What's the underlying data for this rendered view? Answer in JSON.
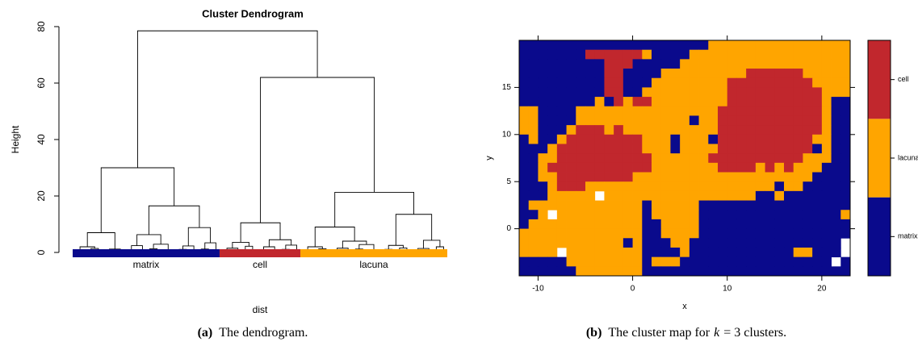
{
  "chart_data": [
    {
      "type": "dendrogram",
      "title": "Cluster Dendrogram",
      "y_label": "Height",
      "x_label": "dist",
      "ylim": [
        0,
        80
      ],
      "yticks": [
        0,
        20,
        40,
        60,
        80
      ],
      "tree": [
        78.5,
        [
          30,
          [
            7,
            [
              2,
              [
                1,
                null,
                null
              ],
              [
                1.4,
                null,
                null
              ]
            ],
            [
              1.2,
              [
                0.6,
                null,
                null
              ],
              null
            ]
          ],
          [
            16.5,
            [
              6.3,
              [
                2.4,
                [
                  1,
                  null,
                  null
                ],
                null
              ],
              [
                2.9,
                [
                  1.3,
                  null,
                  null
                ],
                [
                  0.9,
                  null,
                  null
                ]
              ]
            ],
            [
              8.8,
              [
                2.3,
                [
                  1.1,
                  null,
                  null
                ],
                null
              ],
              [
                3.4,
                [
                  1.2,
                  null,
                  null
                ],
                null
              ]
            ]
          ]
        ],
        [
          62,
          [
            10.5,
            [
              3.6,
              [
                1.5,
                [
                  0.8,
                  null,
                  null
                ],
                null
              ],
              [
                2.2,
                null,
                null
              ]
            ],
            [
              4.5,
              [
                2,
                [
                  1,
                  null,
                  null
                ],
                null
              ],
              [
                2.6,
                [
                  1.1,
                  null,
                  null
                ],
                null
              ]
            ]
          ],
          [
            21.3,
            [
              9,
              [
                2,
                [
                  1,
                  null,
                  null
                ],
                [
                  1.3,
                  null,
                  null
                ]
              ],
              [
                4,
                [
                  1.5,
                  [
                    0.9,
                    null,
                    null
                  ],
                  null
                ],
                [
                  2.8,
                  [
                    1.2,
                    null,
                    null
                  ],
                  [
                    0.7,
                    null,
                    null
                  ]
                ]
              ]
            ],
            [
              13.5,
              [
                2.5,
                [
                  1.1,
                  null,
                  null
                ],
                [
                  1.6,
                  null,
                  null
                ]
              ],
              [
                4.3,
                [
                  1.4,
                  [
                    0.8,
                    null,
                    null
                  ],
                  null
                ],
                [
                  2,
                  null,
                  null
                ]
              ]
            ]
          ]
        ]
      ],
      "clusters": [
        {
          "name": "matrix",
          "color": "#0a0a8c",
          "leaves": 20
        },
        {
          "name": "cell",
          "color": "#c1272d",
          "leaves": 11
        },
        {
          "name": "lacuna",
          "color": "#ffa500",
          "leaves": 20
        }
      ],
      "caption": {
        "label": "(a)",
        "text": "The dendrogram."
      }
    },
    {
      "type": "heatmap",
      "x_label": "x",
      "y_label": "y",
      "xlim": [
        -12,
        23
      ],
      "ylim": [
        -5,
        20
      ],
      "xticks": [
        -10,
        0,
        10,
        20
      ],
      "yticks": [
        0,
        5,
        10,
        15
      ],
      "levels": [
        {
          "name": "matrix",
          "color": "#0a0a8c"
        },
        {
          "name": "lacuna",
          "color": "#ffa500"
        },
        {
          "name": "cell",
          "color": "#c1272d"
        }
      ],
      "z": [
        [
          0,
          0,
          0,
          0,
          0,
          0,
          0,
          0,
          0,
          0,
          0,
          0,
          0,
          0,
          0,
          0,
          0,
          0,
          0,
          0,
          1,
          1,
          1,
          1,
          1,
          1,
          1,
          1,
          1,
          1,
          1,
          1,
          1,
          1,
          1
        ],
        [
          0,
          0,
          0,
          0,
          0,
          0,
          0,
          2,
          2,
          2,
          2,
          2,
          2,
          1,
          0,
          0,
          0,
          0,
          1,
          1,
          1,
          1,
          1,
          1,
          1,
          1,
          1,
          1,
          1,
          1,
          1,
          1,
          1,
          1,
          1
        ],
        [
          0,
          0,
          0,
          0,
          0,
          0,
          0,
          0,
          0,
          2,
          2,
          2,
          0,
          0,
          0,
          0,
          0,
          1,
          1,
          1,
          1,
          1,
          1,
          1,
          1,
          1,
          1,
          1,
          1,
          1,
          1,
          1,
          1,
          1,
          1
        ],
        [
          0,
          0,
          0,
          0,
          0,
          0,
          0,
          0,
          0,
          2,
          2,
          0,
          0,
          0,
          0,
          1,
          1,
          1,
          1,
          1,
          1,
          1,
          1,
          1,
          2,
          2,
          2,
          2,
          2,
          2,
          1,
          1,
          1,
          1,
          1
        ],
        [
          0,
          0,
          0,
          0,
          0,
          0,
          0,
          0,
          0,
          2,
          2,
          0,
          0,
          0,
          1,
          1,
          1,
          1,
          1,
          1,
          1,
          1,
          2,
          2,
          2,
          2,
          2,
          2,
          2,
          2,
          2,
          1,
          1,
          1,
          1
        ],
        [
          0,
          0,
          0,
          0,
          0,
          0,
          0,
          0,
          0,
          2,
          2,
          0,
          0,
          1,
          1,
          1,
          1,
          1,
          1,
          1,
          1,
          1,
          2,
          2,
          2,
          2,
          2,
          2,
          2,
          2,
          2,
          2,
          1,
          1,
          1
        ],
        [
          0,
          0,
          0,
          0,
          0,
          0,
          0,
          0,
          1,
          0,
          2,
          1,
          2,
          2,
          1,
          1,
          1,
          1,
          1,
          1,
          1,
          1,
          2,
          2,
          2,
          2,
          2,
          2,
          2,
          2,
          2,
          2,
          1,
          0,
          0
        ],
        [
          1,
          1,
          0,
          0,
          0,
          0,
          1,
          1,
          1,
          1,
          1,
          1,
          1,
          1,
          1,
          1,
          1,
          1,
          1,
          1,
          1,
          2,
          2,
          2,
          2,
          2,
          2,
          2,
          2,
          2,
          2,
          2,
          1,
          0,
          0
        ],
        [
          1,
          1,
          0,
          0,
          0,
          0,
          1,
          1,
          1,
          1,
          1,
          1,
          1,
          1,
          1,
          1,
          1,
          1,
          0,
          1,
          1,
          2,
          2,
          2,
          2,
          2,
          2,
          2,
          2,
          2,
          2,
          2,
          1,
          0,
          0
        ],
        [
          1,
          1,
          0,
          0,
          0,
          1,
          2,
          2,
          2,
          1,
          2,
          1,
          1,
          1,
          1,
          1,
          1,
          1,
          1,
          1,
          1,
          2,
          2,
          2,
          2,
          2,
          2,
          2,
          2,
          2,
          2,
          2,
          1,
          0,
          0
        ],
        [
          0,
          1,
          0,
          0,
          1,
          2,
          2,
          2,
          2,
          2,
          2,
          2,
          2,
          1,
          1,
          1,
          0,
          1,
          1,
          1,
          0,
          2,
          2,
          2,
          2,
          2,
          2,
          2,
          2,
          2,
          2,
          1,
          1,
          0,
          0
        ],
        [
          0,
          0,
          0,
          1,
          2,
          2,
          2,
          2,
          2,
          2,
          2,
          2,
          2,
          1,
          1,
          1,
          0,
          1,
          1,
          1,
          1,
          2,
          2,
          2,
          2,
          2,
          2,
          2,
          2,
          2,
          2,
          0,
          1,
          0,
          0
        ],
        [
          0,
          0,
          1,
          1,
          2,
          2,
          2,
          2,
          2,
          2,
          2,
          2,
          2,
          2,
          1,
          1,
          1,
          1,
          1,
          1,
          2,
          2,
          2,
          2,
          2,
          2,
          2,
          2,
          2,
          2,
          1,
          1,
          1,
          0,
          0
        ],
        [
          0,
          0,
          1,
          2,
          2,
          2,
          2,
          2,
          2,
          2,
          2,
          2,
          2,
          2,
          1,
          1,
          1,
          1,
          1,
          1,
          1,
          2,
          2,
          2,
          2,
          1,
          2,
          1,
          2,
          1,
          1,
          1,
          0,
          0,
          0
        ],
        [
          0,
          0,
          1,
          1,
          2,
          2,
          2,
          2,
          2,
          2,
          2,
          2,
          1,
          1,
          1,
          1,
          1,
          1,
          1,
          1,
          1,
          1,
          1,
          1,
          1,
          1,
          1,
          1,
          1,
          1,
          1,
          0,
          0,
          0,
          0
        ],
        [
          0,
          0,
          0,
          1,
          2,
          2,
          2,
          1,
          1,
          1,
          1,
          1,
          1,
          1,
          1,
          1,
          1,
          1,
          1,
          1,
          1,
          1,
          1,
          1,
          1,
          1,
          1,
          0,
          1,
          1,
          0,
          0,
          0,
          0,
          0
        ],
        [
          0,
          0,
          0,
          1,
          1,
          1,
          1,
          1,
          null,
          1,
          1,
          1,
          1,
          1,
          1,
          1,
          1,
          1,
          1,
          1,
          1,
          1,
          1,
          1,
          1,
          0,
          0,
          1,
          0,
          0,
          0,
          0,
          0,
          0,
          0
        ],
        [
          0,
          1,
          1,
          1,
          1,
          1,
          1,
          1,
          1,
          1,
          1,
          1,
          1,
          0,
          1,
          1,
          1,
          1,
          1,
          0,
          0,
          0,
          0,
          0,
          0,
          0,
          0,
          0,
          0,
          0,
          0,
          0,
          0,
          0,
          0
        ],
        [
          0,
          0,
          1,
          null,
          1,
          1,
          1,
          1,
          1,
          1,
          1,
          1,
          1,
          0,
          1,
          1,
          1,
          1,
          1,
          0,
          0,
          0,
          0,
          0,
          0,
          0,
          0,
          0,
          0,
          0,
          0,
          0,
          0,
          0,
          1
        ],
        [
          0,
          1,
          1,
          1,
          1,
          1,
          1,
          1,
          1,
          1,
          1,
          1,
          1,
          0,
          0,
          1,
          1,
          1,
          1,
          0,
          0,
          0,
          0,
          0,
          0,
          0,
          0,
          0,
          0,
          0,
          0,
          0,
          0,
          0,
          0
        ],
        [
          1,
          1,
          1,
          1,
          1,
          1,
          1,
          1,
          1,
          1,
          1,
          1,
          1,
          0,
          0,
          1,
          1,
          1,
          1,
          0,
          0,
          0,
          0,
          0,
          0,
          0,
          0,
          0,
          0,
          0,
          0,
          0,
          0,
          0,
          0
        ],
        [
          1,
          1,
          1,
          1,
          1,
          1,
          1,
          1,
          1,
          1,
          1,
          0,
          1,
          0,
          0,
          0,
          1,
          1,
          0,
          0,
          0,
          0,
          0,
          0,
          0,
          0,
          0,
          0,
          0,
          0,
          0,
          0,
          0,
          0,
          null
        ],
        [
          1,
          1,
          1,
          1,
          null,
          1,
          1,
          1,
          1,
          1,
          1,
          1,
          1,
          0,
          0,
          0,
          0,
          1,
          0,
          0,
          0,
          0,
          0,
          0,
          0,
          0,
          0,
          0,
          0,
          1,
          1,
          0,
          0,
          0,
          null
        ],
        [
          0,
          0,
          0,
          0,
          0,
          1,
          1,
          1,
          1,
          1,
          1,
          1,
          1,
          0,
          1,
          1,
          1,
          0,
          0,
          0,
          0,
          0,
          0,
          0,
          0,
          0,
          0,
          0,
          0,
          0,
          0,
          0,
          0,
          null,
          0
        ],
        [
          0,
          0,
          0,
          0,
          0,
          0,
          1,
          1,
          1,
          1,
          1,
          1,
          1,
          0,
          0,
          0,
          0,
          0,
          0,
          0,
          0,
          0,
          0,
          0,
          0,
          0,
          0,
          0,
          0,
          0,
          0,
          0,
          0,
          0,
          0
        ]
      ],
      "caption": {
        "label": "(b)",
        "text": [
          "The cluster map for",
          "k",
          "= 3 clusters."
        ]
      }
    }
  ]
}
